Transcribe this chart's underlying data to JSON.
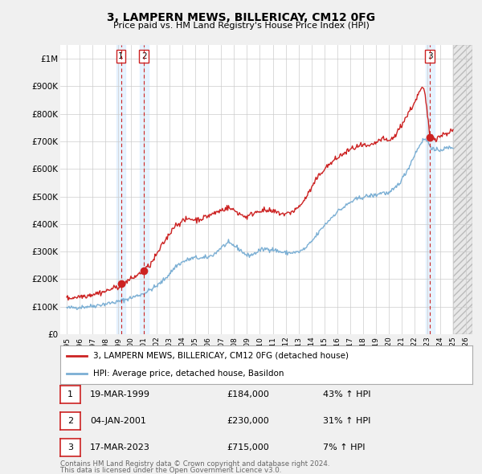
{
  "title": "3, LAMPERN MEWS, BILLERICAY, CM12 0FG",
  "subtitle": "Price paid vs. HM Land Registry's House Price Index (HPI)",
  "ylim": [
    0,
    1050000
  ],
  "yticks": [
    0,
    100000,
    200000,
    300000,
    400000,
    500000,
    600000,
    700000,
    800000,
    900000,
    1000000
  ],
  "ytick_labels": [
    "£0",
    "£100K",
    "£200K",
    "£300K",
    "£400K",
    "£500K",
    "£600K",
    "£700K",
    "£800K",
    "£900K",
    "£1M"
  ],
  "xlim_start": 1994.5,
  "xlim_end": 2026.5,
  "xticks": [
    1995,
    1996,
    1997,
    1998,
    1999,
    2000,
    2001,
    2002,
    2003,
    2004,
    2005,
    2006,
    2007,
    2008,
    2009,
    2010,
    2011,
    2012,
    2013,
    2014,
    2015,
    2016,
    2017,
    2018,
    2019,
    2020,
    2021,
    2022,
    2023,
    2024,
    2025,
    2026
  ],
  "hpi_color": "#7bafd4",
  "price_color": "#cc2222",
  "transaction_color": "#cc2222",
  "shade_color": "#ddeeff",
  "legend_label_price": "3, LAMPERN MEWS, BILLERICAY, CM12 0FG (detached house)",
  "legend_label_hpi": "HPI: Average price, detached house, Basildon",
  "transactions": [
    {
      "num": 1,
      "date": "19-MAR-1999",
      "year": 1999.21,
      "price": 184000,
      "pct": "43%",
      "dir": "↑"
    },
    {
      "num": 2,
      "date": "04-JAN-2001",
      "year": 2001.01,
      "price": 230000,
      "pct": "31%",
      "dir": "↑"
    },
    {
      "num": 3,
      "date": "17-MAR-2023",
      "year": 2023.21,
      "price": 715000,
      "pct": "7%",
      "dir": "↑"
    }
  ],
  "footer1": "Contains HM Land Registry data © Crown copyright and database right 2024.",
  "footer2": "This data is licensed under the Open Government Licence v3.0.",
  "background_color": "#f0f0f0",
  "plot_bg_color": "#ffffff",
  "grid_color": "#cccccc",
  "hpi_anchors": [
    [
      1995.0,
      95000
    ],
    [
      1996.0,
      98000
    ],
    [
      1997.0,
      102000
    ],
    [
      1998.0,
      110000
    ],
    [
      1999.0,
      118000
    ],
    [
      2000.0,
      132000
    ],
    [
      2001.0,
      148000
    ],
    [
      2002.0,
      175000
    ],
    [
      2002.5,
      195000
    ],
    [
      2003.0,
      220000
    ],
    [
      2003.5,
      248000
    ],
    [
      2004.0,
      262000
    ],
    [
      2004.5,
      272000
    ],
    [
      2005.0,
      278000
    ],
    [
      2005.5,
      275000
    ],
    [
      2006.0,
      280000
    ],
    [
      2006.5,
      292000
    ],
    [
      2007.0,
      315000
    ],
    [
      2007.5,
      330000
    ],
    [
      2008.0,
      322000
    ],
    [
      2008.5,
      305000
    ],
    [
      2009.0,
      285000
    ],
    [
      2009.5,
      290000
    ],
    [
      2010.0,
      305000
    ],
    [
      2010.5,
      310000
    ],
    [
      2011.0,
      308000
    ],
    [
      2011.5,
      300000
    ],
    [
      2012.0,
      295000
    ],
    [
      2012.5,
      296000
    ],
    [
      2013.0,
      298000
    ],
    [
      2013.5,
      310000
    ],
    [
      2014.0,
      335000
    ],
    [
      2014.5,
      365000
    ],
    [
      2015.0,
      395000
    ],
    [
      2015.5,
      420000
    ],
    [
      2016.0,
      445000
    ],
    [
      2016.5,
      460000
    ],
    [
      2017.0,
      478000
    ],
    [
      2017.5,
      490000
    ],
    [
      2018.0,
      498000
    ],
    [
      2018.5,
      502000
    ],
    [
      2019.0,
      505000
    ],
    [
      2019.5,
      515000
    ],
    [
      2020.0,
      510000
    ],
    [
      2020.5,
      530000
    ],
    [
      2021.0,
      560000
    ],
    [
      2021.5,
      600000
    ],
    [
      2022.0,
      650000
    ],
    [
      2022.5,
      695000
    ],
    [
      2022.8,
      710000
    ],
    [
      2023.0,
      700000
    ],
    [
      2023.3,
      680000
    ],
    [
      2023.6,
      665000
    ],
    [
      2024.0,
      670000
    ],
    [
      2024.5,
      675000
    ],
    [
      2025.0,
      680000
    ]
  ],
  "price_anchors": [
    [
      1995.0,
      130000
    ],
    [
      1995.5,
      133000
    ],
    [
      1996.0,
      137000
    ],
    [
      1996.5,
      140000
    ],
    [
      1997.0,
      145000
    ],
    [
      1997.5,
      150000
    ],
    [
      1998.0,
      155000
    ],
    [
      1998.5,
      165000
    ],
    [
      1999.0,
      172000
    ],
    [
      1999.21,
      184000
    ],
    [
      1999.5,
      187000
    ],
    [
      2000.0,
      200000
    ],
    [
      2000.5,
      215000
    ],
    [
      2001.01,
      230000
    ],
    [
      2001.3,
      245000
    ],
    [
      2001.5,
      252000
    ],
    [
      2002.0,
      290000
    ],
    [
      2002.5,
      330000
    ],
    [
      2003.0,
      365000
    ],
    [
      2003.3,
      390000
    ],
    [
      2003.6,
      400000
    ],
    [
      2004.0,
      410000
    ],
    [
      2004.5,
      420000
    ],
    [
      2005.0,
      415000
    ],
    [
      2005.5,
      420000
    ],
    [
      2006.0,
      430000
    ],
    [
      2006.5,
      440000
    ],
    [
      2007.0,
      450000
    ],
    [
      2007.5,
      460000
    ],
    [
      2008.0,
      450000
    ],
    [
      2008.5,
      435000
    ],
    [
      2009.0,
      425000
    ],
    [
      2009.5,
      440000
    ],
    [
      2010.0,
      450000
    ],
    [
      2010.5,
      448000
    ],
    [
      2011.0,
      445000
    ],
    [
      2011.5,
      440000
    ],
    [
      2012.0,
      435000
    ],
    [
      2012.5,
      445000
    ],
    [
      2013.0,
      460000
    ],
    [
      2013.5,
      490000
    ],
    [
      2014.0,
      530000
    ],
    [
      2014.5,
      570000
    ],
    [
      2015.0,
      600000
    ],
    [
      2015.5,
      620000
    ],
    [
      2016.0,
      640000
    ],
    [
      2016.5,
      655000
    ],
    [
      2017.0,
      670000
    ],
    [
      2017.5,
      680000
    ],
    [
      2018.0,
      685000
    ],
    [
      2018.5,
      680000
    ],
    [
      2019.0,
      695000
    ],
    [
      2019.5,
      710000
    ],
    [
      2020.0,
      700000
    ],
    [
      2020.5,
      720000
    ],
    [
      2021.0,
      760000
    ],
    [
      2021.5,
      800000
    ],
    [
      2022.0,
      840000
    ],
    [
      2022.3,
      870000
    ],
    [
      2022.6,
      895000
    ],
    [
      2022.8,
      880000
    ],
    [
      2023.0,
      800000
    ],
    [
      2023.21,
      715000
    ],
    [
      2023.4,
      720000
    ],
    [
      2023.7,
      710000
    ],
    [
      2024.0,
      720000
    ],
    [
      2024.5,
      730000
    ],
    [
      2025.0,
      740000
    ]
  ]
}
